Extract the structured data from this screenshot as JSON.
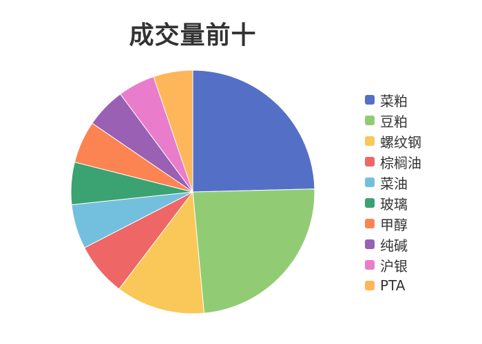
{
  "chart_data": {
    "type": "pie",
    "title": "成交量前十",
    "legend_position": "right",
    "categories": [
      "菜粕",
      "豆粕",
      "螺纹钢",
      "棕榈油",
      "菜油",
      "玻璃",
      "甲醇",
      "纯碱",
      "沪银",
      "PTA"
    ],
    "values": [
      25.0,
      24.3,
      12.0,
      7.2,
      6.0,
      5.7,
      5.7,
      5.4,
      5.0,
      5.3
    ],
    "colors": [
      "#5470c6",
      "#91cc75",
      "#fac858",
      "#ee6666",
      "#73c0de",
      "#3ba272",
      "#fc8452",
      "#9a60b4",
      "#ea7ccc",
      "#fdb65a"
    ]
  }
}
